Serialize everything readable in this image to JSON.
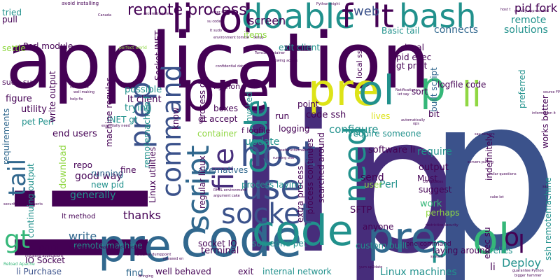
{
  "palette": {
    "dark_purple": "#440154",
    "indigo": "#3b528b",
    "blue": "#31688e",
    "teal": "#21918c",
    "green": "#35b779",
    "lime": "#90d743",
    "yellow": "#dde318",
    "purple": "#472d7b"
  },
  "words": [
    {
      "text": "application",
      "color": "dark_purple"
    },
    {
      "text": "li",
      "color": "dark_purple"
    },
    {
      "text": "lip",
      "color": "purple"
    },
    {
      "text": "p",
      "color": "indigo"
    },
    {
      "text": "pre",
      "color": "dark_purple"
    },
    {
      "text": "code",
      "color": "blue"
    },
    {
      "text": "pre",
      "color": "blue"
    },
    {
      "text": "code",
      "color": "teal"
    },
    {
      "text": "pre",
      "color": "blue"
    },
    {
      "text": "pre",
      "color": "yellow"
    },
    {
      "text": "code",
      "color": "teal"
    },
    {
      "text": "ol",
      "color": "teal"
    },
    {
      "text": "p",
      "color": "green"
    },
    {
      "text": "ol",
      "color": "green"
    },
    {
      "text": "li",
      "color": "lime"
    },
    {
      "text": "li",
      "color": "dark_purple"
    },
    {
      "text": "ol",
      "color": "dark_purple"
    },
    {
      "text": "doable",
      "color": "teal"
    },
    {
      "text": "bash",
      "color": "teal"
    },
    {
      "text": "lt",
      "color": "dark_purple"
    },
    {
      "text": "f",
      "color": "dark_purple"
    },
    {
      "text": "web",
      "color": "indigo"
    },
    {
      "text": "remote process",
      "color": "dark_purple"
    },
    {
      "text": "screen",
      "color": "dark_purple"
    },
    {
      "text": "host",
      "color": "indigo"
    },
    {
      "text": "use",
      "color": "indigo"
    },
    {
      "text": "socket",
      "color": "indigo"
    },
    {
      "text": "need",
      "color": "teal"
    },
    {
      "text": "file",
      "color": "purple"
    },
    {
      "text": "command",
      "color": "indigo"
    },
    {
      "text": "script",
      "color": "blue"
    },
    {
      "text": "prep",
      "color": "indigo"
    },
    {
      "text": "tail",
      "color": "blue"
    },
    {
      "text": "gt",
      "color": "green"
    },
    {
      "text": "p",
      "color": "teal"
    },
    {
      "text": "o",
      "color": "dark_purple"
    },
    {
      "text": "l",
      "color": "dark_purple"
    },
    {
      "text": "pid fork",
      "color": "dark_purple"
    },
    {
      "text": "remote",
      "color": "teal"
    },
    {
      "text": "solutions",
      "color": "teal"
    },
    {
      "text": "connects",
      "color": "blue"
    },
    {
      "text": "Basic tail",
      "color": "teal"
    },
    {
      "text": "local",
      "color": "dark_purple"
    },
    {
      "text": "pid exec",
      "color": "dark_purple"
    },
    {
      "text": "gt print",
      "color": "dark_purple"
    },
    {
      "text": "logfile code",
      "color": "dark_purple"
    },
    {
      "text": "built script",
      "color": "blue"
    },
    {
      "text": "exit client",
      "color": "teal"
    },
    {
      "text": "items",
      "color": "lime"
    },
    {
      "text": "Socket INET",
      "color": "dark_purple"
    },
    {
      "text": "Perl module",
      "color": "dark_purple"
    },
    {
      "text": "tried",
      "color": "teal"
    },
    {
      "text": "pull",
      "color": "dark_purple"
    },
    {
      "text": "settle",
      "color": "lime"
    },
    {
      "text": "sudo su",
      "color": "dark_purple"
    },
    {
      "text": "figure",
      "color": "dark_purple"
    },
    {
      "text": "requirements",
      "color": "blue"
    },
    {
      "text": "utility",
      "color": "dark_purple"
    },
    {
      "text": "pet Perl",
      "color": "teal"
    },
    {
      "text": "possible",
      "color": "teal"
    },
    {
      "text": "Python",
      "color": "dark_purple"
    },
    {
      "text": "lt client",
      "color": "dark_purple"
    },
    {
      "text": "trying",
      "color": "teal"
    },
    {
      "text": "INET gt",
      "color": "teal"
    },
    {
      "text": "end users",
      "color": "dark_purple"
    },
    {
      "text": "good way",
      "color": "dark_purple"
    },
    {
      "text": "generally",
      "color": "teal"
    },
    {
      "text": "thanks",
      "color": "dark_purple"
    },
    {
      "text": "running",
      "color": "blue"
    },
    {
      "text": "new pid",
      "color": "teal"
    },
    {
      "text": "lt method",
      "color": "dark_purple"
    },
    {
      "text": "write",
      "color": "blue"
    },
    {
      "text": "print",
      "color": "dark_purple"
    },
    {
      "text": "remote machine",
      "color": "teal"
    },
    {
      "text": "IO Socket",
      "color": "dark_purple"
    },
    {
      "text": "li Purchase",
      "color": "indigo"
    },
    {
      "text": "find",
      "color": "blue"
    },
    {
      "text": "well behaved",
      "color": "dark_purple"
    },
    {
      "text": "exit",
      "color": "dark_purple"
    },
    {
      "text": "internal network",
      "color": "teal"
    },
    {
      "text": "socket IO",
      "color": "dark_purple"
    },
    {
      "text": "someone pet",
      "color": "teal"
    },
    {
      "text": "terminal",
      "color": "dark_purple"
    },
    {
      "text": "update",
      "color": "teal"
    },
    {
      "text": "configure",
      "color": "teal"
    },
    {
      "text": "code ssh",
      "color": "dark_purple"
    },
    {
      "text": "point",
      "color": "dark_purple"
    },
    {
      "text": "invoked",
      "color": "teal"
    },
    {
      "text": "gt accept",
      "color": "dark_purple"
    },
    {
      "text": "container",
      "color": "lime"
    },
    {
      "text": "boxes",
      "color": "dark_purple"
    },
    {
      "text": "f logfile",
      "color": "dark_purple"
    },
    {
      "text": "alternatives",
      "color": "blue"
    },
    {
      "text": "process laying",
      "color": "teal"
    },
    {
      "text": "extra process",
      "color": "dark_purple"
    },
    {
      "text": "process continues",
      "color": "dark_purple"
    },
    {
      "text": "searched around",
      "color": "dark_purple"
    },
    {
      "text": "software li",
      "color": "dark_purple"
    },
    {
      "text": "require someone",
      "color": "teal"
    },
    {
      "text": "lives",
      "color": "yellow"
    },
    {
      "text": "sort",
      "color": "dark_purple"
    },
    {
      "text": "bit",
      "color": "dark_purple"
    },
    {
      "text": "require",
      "color": "teal"
    },
    {
      "text": "Must",
      "color": "dark_purple"
    },
    {
      "text": "output",
      "color": "dark_purple"
    },
    {
      "text": "Perl",
      "color": "teal"
    },
    {
      "text": "send",
      "color": "dark_purple"
    },
    {
      "text": "suggest",
      "color": "dark_purple"
    },
    {
      "text": "work",
      "color": "green"
    },
    {
      "text": "perhaps",
      "color": "lime"
    },
    {
      "text": "SFTP",
      "color": "dark_purple"
    },
    {
      "text": "anyone",
      "color": "dark_purple"
    },
    {
      "text": "user",
      "color": "lime"
    },
    {
      "text": "custom built",
      "color": "teal"
    },
    {
      "text": "Linux machines",
      "color": "teal"
    },
    {
      "text": "li",
      "color": "dark_purple"
    },
    {
      "text": "Deploy",
      "color": "teal"
    },
    {
      "text": "relies",
      "color": "teal"
    },
    {
      "text": "laying around",
      "color": "dark_purple"
    },
    {
      "text": "indefinitely",
      "color": "dark_purple"
    },
    {
      "text": "preferred",
      "color": "teal"
    },
    {
      "text": "works better",
      "color": "dark_purple"
    },
    {
      "text": "ssh remotemachine",
      "color": "teal"
    },
    {
      "text": "exec su",
      "color": "dark_purple"
    },
    {
      "text": "one command",
      "color": "dark_purple"
    },
    {
      "text": "regular linux",
      "color": "dark_purple"
    },
    {
      "text": "process dies",
      "color": "dark_purple"
    },
    {
      "text": "machine regular",
      "color": "dark_purple"
    },
    {
      "text": "write output",
      "color": "dark_purple"
    },
    {
      "text": "continuing output",
      "color": "teal"
    },
    {
      "text": "remotemachine f",
      "color": "teal"
    },
    {
      "text": "logging",
      "color": "dark_purple"
    },
    {
      "text": "fine",
      "color": "dark_purple"
    },
    {
      "text": "repo",
      "color": "dark_purple"
    },
    {
      "text": "download",
      "color": "lime"
    },
    {
      "text": "Linux utilities",
      "color": "dark_purple"
    },
    {
      "text": "know",
      "color": "dark_purple"
    },
    {
      "text": "run",
      "color": "dark_purple"
    },
    {
      "text": "local ssh",
      "color": "dark_purple"
    },
    {
      "text": "avoid installing",
      "color": "dark_purple"
    },
    {
      "text": "secure transfers",
      "color": "dark_purple"
    },
    {
      "text": "Python might",
      "color": "dark_purple"
    },
    {
      "text": "host t",
      "color": "dark_purple"
    },
    {
      "text": "greatly appreciated",
      "color": "dark_purple"
    },
    {
      "text": "perfect world",
      "color": "lime"
    },
    {
      "text": "Tomcat container",
      "color": "dark_purple"
    },
    {
      "text": "following across",
      "color": "dark_purple"
    },
    {
      "text": "confidential data",
      "color": "dark_purple"
    },
    {
      "text": "let say",
      "color": "dark_purple"
    },
    {
      "text": "Notifications",
      "color": "dark_purple"
    },
    {
      "text": "information it",
      "color": "dark_purple"
    },
    {
      "text": "say servers",
      "color": "dark_purple"
    },
    {
      "text": "similar questions",
      "color": "dark_purple"
    },
    {
      "text": "servers pulling",
      "color": "dark_purple"
    },
    {
      "text": "Apache vhost",
      "color": "dark_purple"
    },
    {
      "text": "Reload Apache",
      "color": "green"
    },
    {
      "text": "appreciated especially",
      "color": "dark_purple"
    },
    {
      "text": "useful information",
      "color": "dark_purple"
    },
    {
      "text": "argument cake",
      "color": "dark_purple"
    },
    {
      "text": "running one",
      "color": "dark_purple"
    },
    {
      "text": "RHEL environment",
      "color": "dark_purple"
    },
    {
      "text": "essentially need",
      "color": "dark_purple"
    },
    {
      "text": "installing applications",
      "color": "dark_purple"
    },
    {
      "text": "external dumppoint",
      "color": "dark_purple"
    },
    {
      "text": "released en",
      "color": "dark_purple"
    },
    {
      "text": "yum up2date",
      "color": "dark_purple"
    },
    {
      "text": "guarantee Python",
      "color": "dark_purple"
    },
    {
      "text": "bigger hammer",
      "color": "dark_purple"
    },
    {
      "text": "restrictive security",
      "color": "dark_purple"
    },
    {
      "text": "OS updates",
      "color": "dark_purple"
    },
    {
      "text": "system",
      "color": "dark_purple"
    },
    {
      "text": "cake let",
      "color": "dark_purple"
    },
    {
      "text": "security environments",
      "color": "dark_purple"
    },
    {
      "text": "environment tomcat",
      "color": "dark_purple"
    },
    {
      "text": "larger setting",
      "color": "dark_purple"
    },
    {
      "text": "lt sudo",
      "color": "dark_purple"
    },
    {
      "text": "su code",
      "color": "dark_purple"
    },
    {
      "text": "Canada",
      "color": "dark_purple"
    },
    {
      "text": "Setup",
      "color": "dark_purple"
    },
    {
      "text": "well making",
      "color": "dark_purple"
    },
    {
      "text": "need write",
      "color": "dark_purple"
    },
    {
      "text": "help fix",
      "color": "dark_purple"
    },
    {
      "text": "source FP",
      "color": "dark_purple"
    },
    {
      "text": "automatically",
      "color": "dark_purple"
    },
    {
      "text": "ops",
      "color": "dark_purple"
    },
    {
      "text": "Bringing",
      "color": "dark_purple"
    },
    {
      "text": "say",
      "color": "dark_purple"
    }
  ]
}
